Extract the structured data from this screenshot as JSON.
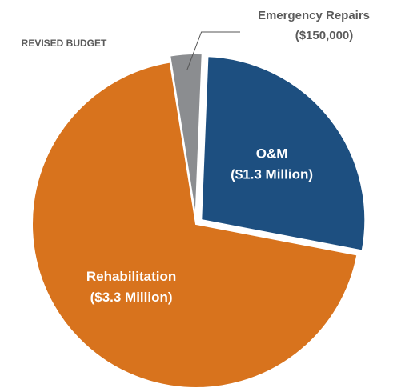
{
  "chart_data": {
    "type": "pie",
    "title": "REVISED BUDGET",
    "categories": [
      "O&M",
      "Rehabilitation",
      "Emergency Repairs"
    ],
    "values": [
      1300000,
      3300000,
      150000
    ],
    "value_labels": [
      "($1.3 Million)",
      "($3.3 Million)",
      "($150,000)"
    ],
    "colors": [
      "#1d4f80",
      "#d8731d",
      "#8b8d90"
    ]
  }
}
